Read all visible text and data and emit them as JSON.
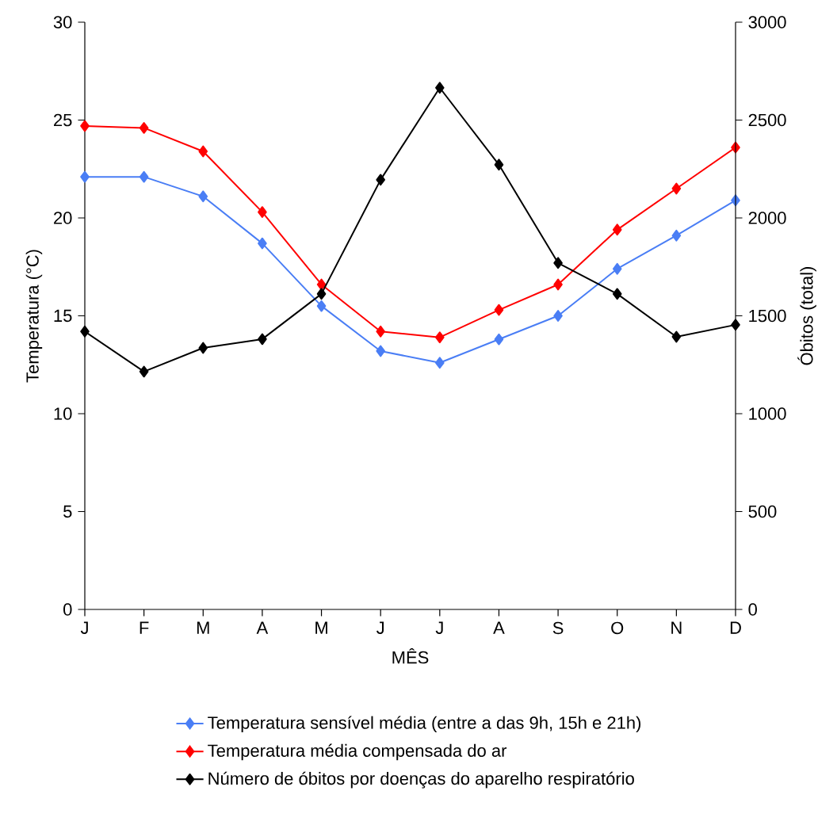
{
  "chart_data": {
    "type": "line",
    "xlabel": "MÊS",
    "ylabel": "Temperatura (°C)",
    "y2label": "Óbitos (total)",
    "categories": [
      "J",
      "F",
      "M",
      "A",
      "M",
      "J",
      "J",
      "A",
      "S",
      "O",
      "N",
      "D"
    ],
    "ylim": [
      0,
      30
    ],
    "yticks": [
      0,
      5,
      10,
      15,
      20,
      25,
      30
    ],
    "y2lim": [
      0,
      3000
    ],
    "y2ticks": [
      0,
      500,
      1000,
      1500,
      2000,
      2500,
      3000
    ],
    "legend": "bottom",
    "marker": "diamond",
    "line_style": "solid",
    "series": [
      {
        "name": "Temperatura sensível média (entre a das 9h, 15h e 21h)",
        "color": "#4a7ef5",
        "values": [
          22.1,
          22.1,
          21.1,
          18.7,
          15.5,
          13.2,
          12.6,
          13.8,
          15.0,
          17.4,
          19.1,
          20.9
        ]
      },
      {
        "name": "Temperatura média compensada do ar",
        "color": "#ff0000",
        "values": [
          24.7,
          24.6,
          23.4,
          20.3,
          16.6,
          14.2,
          13.9,
          15.3,
          16.6,
          19.4,
          21.5,
          23.6
        ]
      },
      {
        "name": "Número de óbitos por doenças do aparelho respiratório",
        "color": "#000000",
        "axis": "y2",
        "values": [
          1420,
          1215,
          1336,
          1381,
          1612,
          2195,
          2665,
          2272,
          1770,
          1612,
          1393,
          1454
        ]
      }
    ]
  }
}
